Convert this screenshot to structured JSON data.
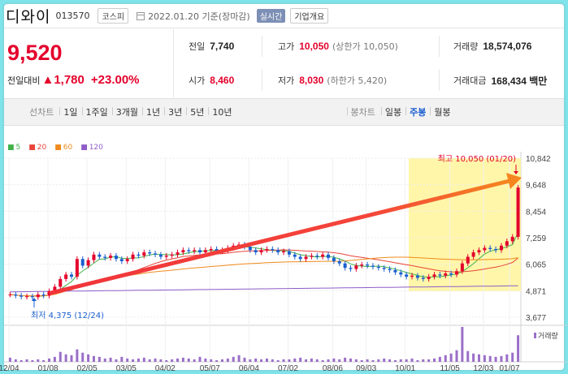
{
  "header": {
    "name": "디와이",
    "code": "013570",
    "market": "코스피",
    "date": "2022.01.20 기준(장마감)",
    "live": "실시간",
    "company_info": "기업개요"
  },
  "price": {
    "current": "9,520",
    "change_label": "전일대비",
    "change": "▲1,780",
    "change_pct": "+23.00%"
  },
  "quote": {
    "prev_label": "전일",
    "prev": "7,740",
    "high_label": "고가",
    "high": "10,050",
    "high_sub": "(상한가 10,050)",
    "volume_label": "거래량",
    "volume": "18,574,076",
    "open_label": "시가",
    "open": "8,460",
    "low_label": "저가",
    "low": "8,030",
    "low_sub": "(하한가 5,420)",
    "value_label": "거래대금",
    "value": "168,434 백만"
  },
  "tabs": {
    "line_label": "선차트",
    "line": [
      "1일",
      "1주일",
      "3개월",
      "1년",
      "3년",
      "5년",
      "10년"
    ],
    "candle_label": "봉차트",
    "candle": [
      "일봉",
      "주봉",
      "월봉"
    ],
    "active_candle": 1
  },
  "legend": [
    {
      "label": "5",
      "color": "#3fb24a"
    },
    {
      "label": "20",
      "color": "#e8443a"
    },
    {
      "label": "60",
      "color": "#f08a1c"
    },
    {
      "label": "120",
      "color": "#8e5cc8"
    }
  ],
  "chart_data": {
    "type": "candlestick",
    "y_ticks": [
      "10,842",
      "9,648",
      "8,454",
      "7,259",
      "6,065",
      "4,871",
      "3,677"
    ],
    "ylim": [
      3677,
      10842
    ],
    "x_ticks": [
      "12/04",
      "01/08",
      "02/05",
      "03/05",
      "04/02",
      "05/07",
      "06/04",
      "07/02",
      "08/06",
      "09/03",
      "10/01",
      "11/05",
      "12/03",
      "01/07"
    ],
    "high_annotation": "최고 10,050 (01/20)",
    "low_annotation": "최저 4,375 (12/24)",
    "volume_label": "거래량",
    "closes": [
      4700,
      4650,
      4600,
      4620,
      4580,
      4700,
      4650,
      4850,
      5050,
      5400,
      5600,
      5500,
      6300,
      6000,
      6250,
      6500,
      6400,
      6350,
      6450,
      6300,
      6200,
      6300,
      6500,
      6450,
      6600,
      6550,
      6500,
      6400,
      6450,
      6500,
      6600,
      6700,
      6650,
      6700,
      6600,
      6700,
      6750,
      6650,
      6700,
      6800,
      6900,
      6950,
      6850,
      6700,
      6600,
      6700,
      6750,
      6700,
      6600,
      6650,
      6500,
      6400,
      6300,
      6400,
      6450,
      6400,
      6500,
      6350,
      6200,
      6100,
      5900,
      5850,
      6000,
      6050,
      6000,
      5950,
      5900,
      5850,
      5800,
      5700,
      5600,
      5500,
      5550,
      5450,
      5400,
      5500,
      5600,
      5550,
      5650,
      5600,
      5750,
      6100,
      6400,
      6600,
      6700,
      6800,
      6750,
      6700,
      6900,
      7100,
      7300,
      9520
    ],
    "volumes": [
      0.5,
      0.3,
      0.2,
      0.3,
      0.2,
      0.3,
      0.2,
      0.4,
      0.6,
      1.2,
      0.9,
      0.8,
      1.5,
      1.1,
      0.9,
      0.7,
      0.6,
      0.4,
      0.5,
      0.3,
      0.6,
      0.4,
      0.3,
      0.4,
      0.5,
      0.3,
      0.4,
      0.3,
      0.2,
      0.3,
      0.4,
      0.5,
      0.4,
      0.3,
      0.6,
      0.4,
      0.3,
      0.2,
      0.3,
      0.4,
      0.6,
      0.8,
      0.5,
      0.3,
      0.4,
      0.3,
      0.4,
      0.3,
      0.2,
      0.3,
      0.3,
      0.4,
      0.5,
      0.3,
      0.4,
      0.3,
      0.2,
      0.3,
      0.4,
      0.3,
      0.5,
      0.4,
      0.3,
      0.2,
      0.3,
      0.2,
      0.3,
      0.4,
      0.3,
      0.2,
      0.3,
      0.3,
      0.4,
      0.2,
      0.3,
      0.3,
      0.4,
      0.6,
      0.8,
      1.0,
      1.4,
      4.2,
      1.3,
      1.0,
      0.9,
      0.8,
      0.7,
      0.6,
      0.7,
      0.9,
      1.1,
      3.2
    ]
  }
}
